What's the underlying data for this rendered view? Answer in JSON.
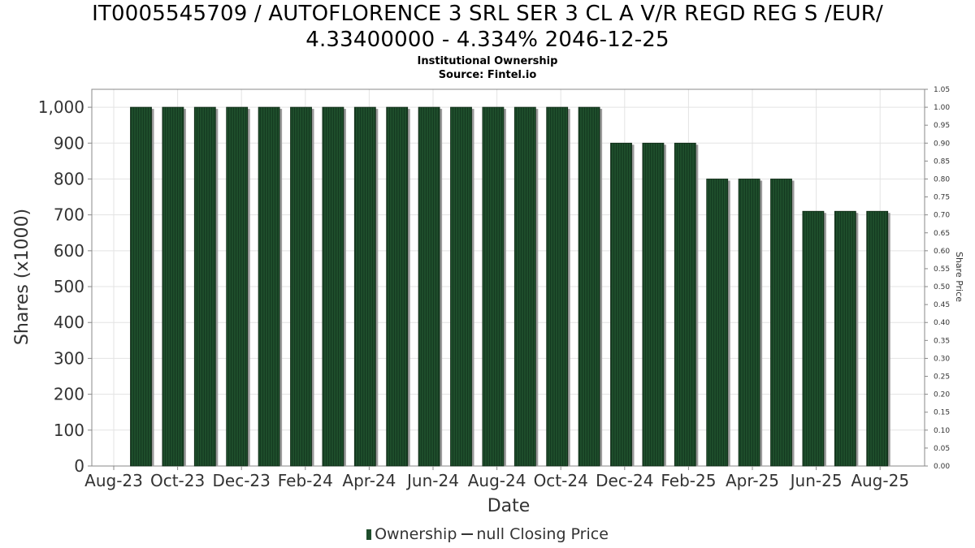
{
  "chart_data": {
    "type": "bar",
    "title_line1": "IT0005545709 / AUTOFLORENCE 3 SRL SER 3 CL A V/R REGD REG S /EUR/",
    "title_line2": "4.33400000 - 4.334% 2046-12-25",
    "subtitle": "Institutional Ownership",
    "source": "Source: Fintel.io",
    "xlabel": "Date",
    "ylabel": "Shares (x1000)",
    "ylabel_right": "Share Price",
    "ylim": [
      0,
      1050
    ],
    "ylim_right": [
      0,
      1.05
    ],
    "yticks": [
      "0",
      "100",
      "200",
      "300",
      "400",
      "500",
      "600",
      "700",
      "800",
      "900",
      "1,000"
    ],
    "yticks_right": [
      "0.00",
      "0.05",
      "0.10",
      "0.15",
      "0.20",
      "0.25",
      "0.30",
      "0.35",
      "0.40",
      "0.45",
      "0.50",
      "0.55",
      "0.60",
      "0.65",
      "0.70",
      "0.75",
      "0.80",
      "0.85",
      "0.90",
      "0.95",
      "1.00",
      "1.05"
    ],
    "xticks": [
      "Aug-23",
      "Oct-23",
      "Dec-23",
      "Feb-24",
      "Apr-24",
      "Jun-24",
      "Aug-24",
      "Oct-24",
      "Dec-24",
      "Feb-25",
      "Apr-25",
      "Jun-25",
      "Aug-25"
    ],
    "grid": true,
    "bar_color": "#1e4d2b",
    "series": [
      {
        "name": "Ownership",
        "values": [
          1000,
          1000,
          1000,
          1000,
          1000,
          1000,
          1000,
          1000,
          1000,
          1000,
          1000,
          1000,
          1000,
          1000,
          1000,
          900,
          900,
          900,
          800,
          800,
          800,
          710,
          710,
          710
        ]
      }
    ],
    "legend": {
      "ownership_label": "Ownership",
      "price_label": "null Closing Price",
      "placement": "bottom-center"
    }
  }
}
